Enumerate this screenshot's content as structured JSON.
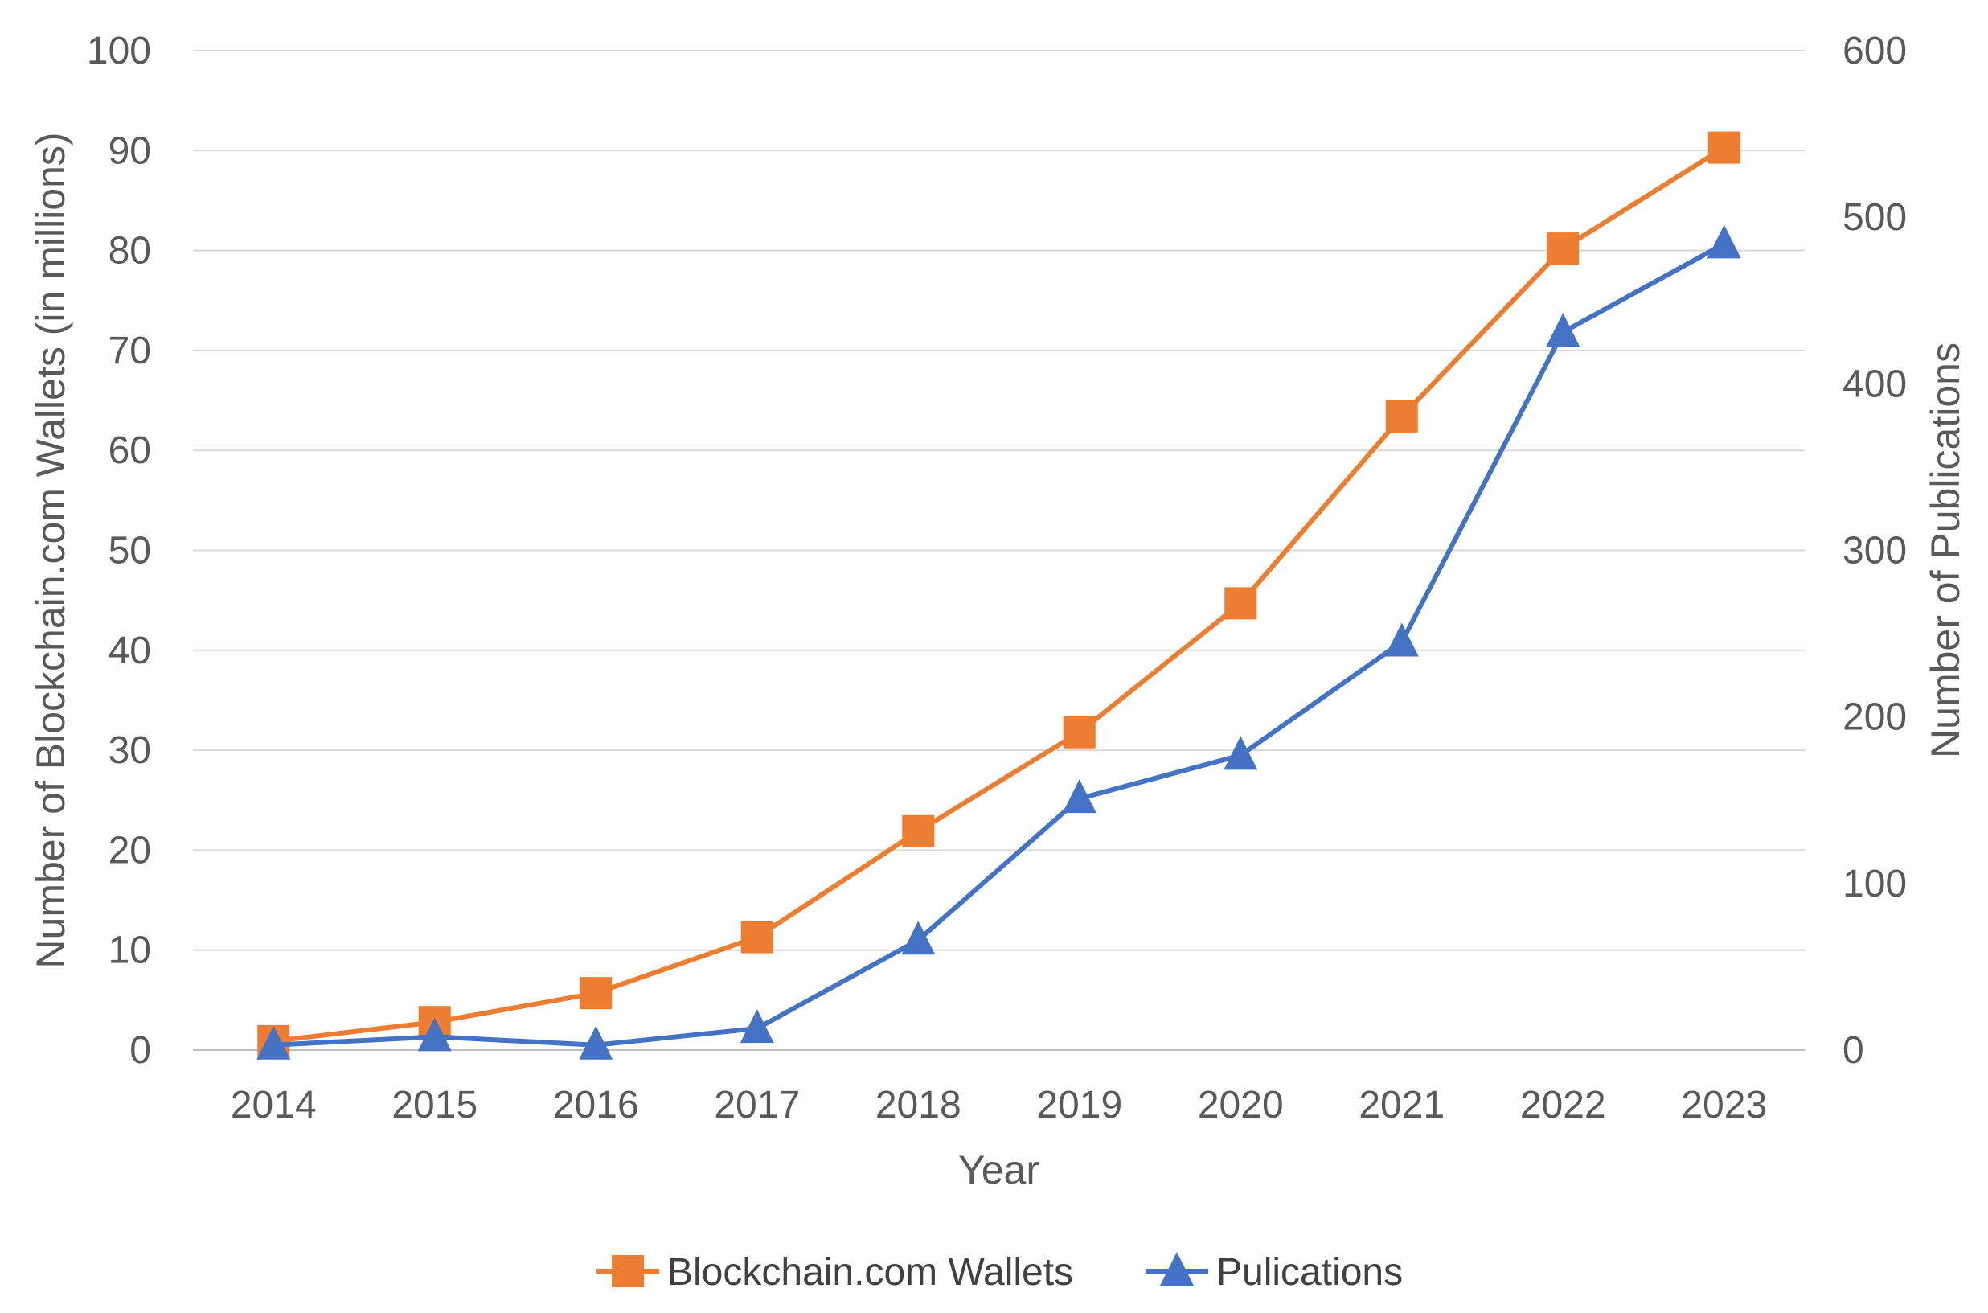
{
  "chart_data": {
    "type": "line",
    "title": "",
    "xlabel": "Year",
    "ylabel": "Number of Blockchain.com Wallets (in millions)",
    "y2label": "Number of Publications",
    "categories": [
      "2014",
      "2015",
      "2016",
      "2017",
      "2018",
      "2019",
      "2020",
      "2021",
      "2022",
      "2023"
    ],
    "ylim": [
      0,
      100
    ],
    "y2lim": [
      0,
      600
    ],
    "yticks": [
      0,
      10,
      20,
      30,
      40,
      50,
      60,
      70,
      80,
      90,
      100
    ],
    "y2ticks": [
      0,
      100,
      200,
      300,
      400,
      500,
      600
    ],
    "grid": true,
    "legend_position": "bottom",
    "series": [
      {
        "name": "Blockchain.com Wallets",
        "axis": "left",
        "marker": "square",
        "color": "#ED7D31",
        "values": [
          0.9,
          2.8,
          5.7,
          11.3,
          21.9,
          31.8,
          44.7,
          63.4,
          80.2,
          90.3
        ]
      },
      {
        "name": "Pulications",
        "axis": "right",
        "marker": "triangle",
        "color": "#4472C4",
        "values": [
          3,
          8,
          3,
          13,
          66,
          151,
          177,
          245,
          431,
          484
        ]
      }
    ]
  }
}
